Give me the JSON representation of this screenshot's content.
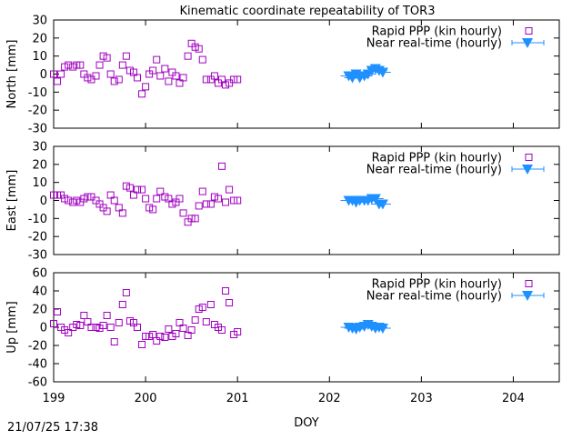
{
  "title": "Kinematic coordinate repeatability of TOR3",
  "timestamp": "21/07/25 17:38",
  "colors": {
    "rapid": "#a000c0",
    "nrt": "#1e90ff"
  },
  "chart_data": [
    {
      "type": "scatter",
      "ylabel": "North [mm]",
      "xlabel": "",
      "xlim": [
        199,
        204.5
      ],
      "ylim": [
        -30,
        30
      ],
      "yticks": [
        -30,
        -20,
        -10,
        0,
        10,
        20,
        30
      ],
      "xticks": [
        199,
        200,
        201,
        202,
        203,
        204
      ],
      "legend_position": "top-right",
      "series": [
        {
          "name": "Rapid PPP (kin hourly)",
          "marker": "open-square",
          "x": [
            199.0,
            199.04,
            199.08,
            199.12,
            199.16,
            199.21,
            199.25,
            199.29,
            199.33,
            199.37,
            199.41,
            199.46,
            199.5,
            199.54,
            199.58,
            199.62,
            199.66,
            199.71,
            199.75,
            199.79,
            199.83,
            199.87,
            199.91,
            199.96,
            200.0,
            200.04,
            200.08,
            200.12,
            200.16,
            200.21,
            200.25,
            200.29,
            200.33,
            200.37,
            200.41,
            200.46,
            200.5,
            200.54,
            200.58,
            200.62,
            200.66,
            200.71,
            200.75,
            200.79,
            200.83,
            200.87,
            200.91,
            200.96,
            201.0
          ],
          "y": [
            0,
            -4,
            0,
            4,
            5,
            4,
            5,
            5,
            0,
            -2,
            -3,
            -1,
            5,
            10,
            9,
            0,
            -4,
            -3,
            5,
            10,
            2,
            1,
            -2,
            -11,
            -7,
            0,
            2,
            8,
            -1,
            3,
            -4,
            1,
            -1,
            -5,
            -2,
            10,
            17,
            15,
            14,
            8,
            -3,
            -3,
            -1,
            -5,
            -3,
            -6,
            -5,
            -3,
            -3
          ]
        },
        {
          "name": "Near real-time (hourly)",
          "marker": "filled-triangle-down-errorbar",
          "x": [
            202.21,
            202.25,
            202.29,
            202.33,
            202.38,
            202.42,
            202.46,
            202.5,
            202.54,
            202.58
          ],
          "y": [
            -1,
            -2,
            0,
            -2,
            -1,
            0,
            2,
            3,
            2,
            1
          ]
        }
      ]
    },
    {
      "type": "scatter",
      "ylabel": "East [mm]",
      "xlabel": "",
      "xlim": [
        199,
        204.5
      ],
      "ylim": [
        -30,
        30
      ],
      "yticks": [
        -30,
        -20,
        -10,
        0,
        10,
        20,
        30
      ],
      "xticks": [
        199,
        200,
        201,
        202,
        203,
        204
      ],
      "legend_position": "top-right",
      "series": [
        {
          "name": "Rapid PPP (kin hourly)",
          "marker": "open-square",
          "x": [
            199.0,
            199.04,
            199.08,
            199.12,
            199.16,
            199.21,
            199.25,
            199.29,
            199.33,
            199.37,
            199.41,
            199.46,
            199.5,
            199.54,
            199.58,
            199.62,
            199.66,
            199.71,
            199.75,
            199.79,
            199.83,
            199.87,
            199.91,
            199.96,
            200.0,
            200.04,
            200.08,
            200.12,
            200.16,
            200.21,
            200.25,
            200.29,
            200.33,
            200.37,
            200.41,
            200.46,
            200.5,
            200.54,
            200.58,
            200.62,
            200.66,
            200.71,
            200.75,
            200.79,
            200.83,
            200.87,
            200.91,
            200.96,
            201.0
          ],
          "y": [
            3,
            3,
            3,
            1,
            0,
            -1,
            0,
            -1,
            1,
            2,
            2,
            0,
            -2,
            -4,
            -6,
            3,
            0,
            -4,
            -7,
            8,
            7,
            3,
            6,
            6,
            1,
            -4,
            -5,
            1,
            5,
            2,
            1,
            -2,
            -1,
            1,
            -7,
            -12,
            -10,
            -10,
            -3,
            5,
            -2,
            -2,
            2,
            1,
            19,
            -1,
            6,
            0,
            0
          ]
        },
        {
          "name": "Near real-time (hourly)",
          "marker": "filled-triangle-down-errorbar",
          "x": [
            202.21,
            202.25,
            202.29,
            202.33,
            202.38,
            202.42,
            202.46,
            202.5,
            202.54,
            202.58
          ],
          "y": [
            0,
            0,
            -1,
            0,
            0,
            0,
            1,
            1,
            -2,
            -2
          ]
        }
      ]
    },
    {
      "type": "scatter",
      "ylabel": "Up [mm]",
      "xlabel": "DOY",
      "xlim": [
        199,
        204.5
      ],
      "ylim": [
        -60,
        60
      ],
      "yticks": [
        -60,
        -40,
        -20,
        0,
        20,
        40,
        60
      ],
      "xticks": [
        199,
        200,
        201,
        202,
        203,
        204
      ],
      "legend_position": "top-right",
      "series": [
        {
          "name": "Rapid PPP (kin hourly)",
          "marker": "open-square",
          "x": [
            199.0,
            199.04,
            199.08,
            199.12,
            199.16,
            199.21,
            199.25,
            199.29,
            199.33,
            199.37,
            199.41,
            199.46,
            199.5,
            199.54,
            199.58,
            199.62,
            199.66,
            199.71,
            199.75,
            199.79,
            199.83,
            199.87,
            199.91,
            199.96,
            200.0,
            200.04,
            200.08,
            200.12,
            200.16,
            200.21,
            200.25,
            200.29,
            200.33,
            200.37,
            200.41,
            200.46,
            200.5,
            200.54,
            200.58,
            200.62,
            200.66,
            200.71,
            200.75,
            200.79,
            200.83,
            200.87,
            200.91,
            200.96,
            201.0
          ],
          "y": [
            4,
            17,
            0,
            -3,
            -6,
            0,
            3,
            2,
            13,
            6,
            0,
            0,
            -1,
            2,
            13,
            0,
            -16,
            5,
            25,
            38,
            7,
            5,
            0,
            -19,
            -10,
            -10,
            -8,
            -15,
            -10,
            -11,
            -2,
            -10,
            -7,
            5,
            -1,
            -9,
            -3,
            8,
            20,
            22,
            6,
            25,
            3,
            0,
            -3,
            40,
            27,
            -8,
            -5
          ]
        },
        {
          "name": "Near real-time (hourly)",
          "marker": "filled-triangle-down-errorbar",
          "x": [
            202.21,
            202.25,
            202.29,
            202.33,
            202.38,
            202.42,
            202.46,
            202.5,
            202.54,
            202.58
          ],
          "y": [
            0,
            -1,
            -2,
            0,
            1,
            3,
            1,
            -1,
            0,
            -1
          ]
        }
      ]
    }
  ]
}
